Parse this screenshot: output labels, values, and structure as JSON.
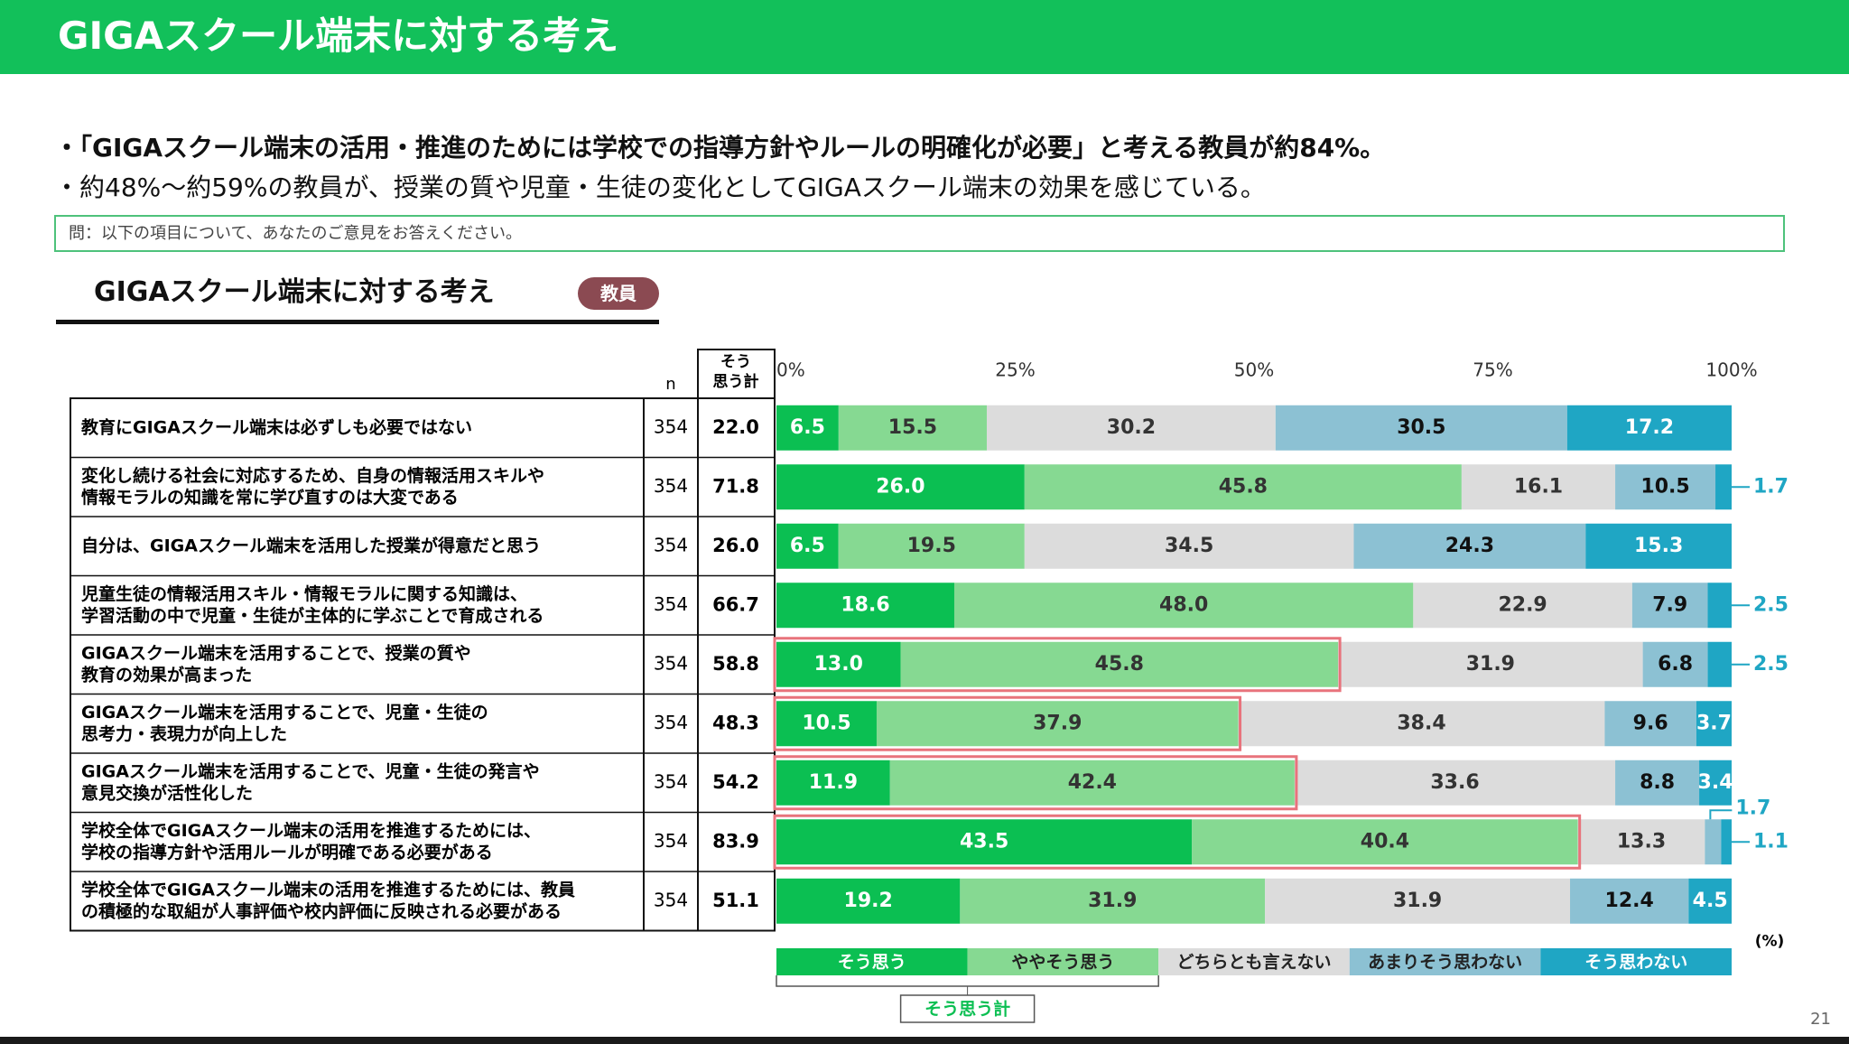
{
  "header": {
    "title": "GIGAスクール端末に対する考え"
  },
  "bullets": [
    "・「GIGAスクール端末の活用・推進のためには学校での指導方針やルールの明確化が必要」と考える教員が約84%。",
    "・約48%～約59%の教員が、授業の質や児童・生徒の変化としてGIGAスクール端末の効果を感じている。"
  ],
  "question": "問：以下の項目について、あなたのご意見をお答えください。",
  "section": {
    "title": "GIGAスクール端末に対する考え",
    "badge": "教員"
  },
  "page_number": "21",
  "chart_data": {
    "type": "bar",
    "orientation": "horizontal-stacked-100",
    "header_n": "n",
    "header_sum": "そう\n思う計",
    "xticks": [
      "0%",
      "25%",
      "50%",
      "75%",
      "100%"
    ],
    "unit_label": "(%)",
    "sum_label": "そう思う計",
    "colors": [
      "#0bbf52",
      "#86d992",
      "#dcdcdc",
      "#8cc1d3",
      "#1fa6c4"
    ],
    "series": [
      {
        "name": "そう思う"
      },
      {
        "name": "ややそう思う"
      },
      {
        "name": "どちらとも言えない"
      },
      {
        "name": "あまりそう思わない"
      },
      {
        "name": "そう思わない"
      }
    ],
    "rows": [
      {
        "label": "教育にGIGAスクール端末は必ずしも必要ではない",
        "n": "354",
        "sum": "22.0",
        "values": [
          6.5,
          15.5,
          30.2,
          30.5,
          17.2
        ],
        "highlight": false
      },
      {
        "label": "変化し続ける社会に対応するため、自身の情報活用スキルや\n情報モラルの知識を常に学び直すのは大変である",
        "n": "354",
        "sum": "71.8",
        "values": [
          26.0,
          45.8,
          16.1,
          10.5,
          1.7
        ],
        "highlight": false
      },
      {
        "label": "自分は、GIGAスクール端末を活用した授業が得意だと思う",
        "n": "354",
        "sum": "26.0",
        "values": [
          6.5,
          19.5,
          34.5,
          24.3,
          15.3
        ],
        "highlight": false
      },
      {
        "label": "児童生徒の情報活用スキル・情報モラルに関する知識は、\n学習活動の中で児童・生徒が主体的に学ぶことで育成される",
        "n": "354",
        "sum": "66.7",
        "values": [
          18.6,
          48.0,
          22.9,
          7.9,
          2.5
        ],
        "highlight": false
      },
      {
        "label": "GIGAスクール端末を活用することで、授業の質や\n教育の効果が高まった",
        "n": "354",
        "sum": "58.8",
        "values": [
          13.0,
          45.8,
          31.9,
          6.8,
          2.5
        ],
        "highlight": true
      },
      {
        "label": "GIGAスクール端末を活用することで、児童・生徒の\n思考力・表現力が向上した",
        "n": "354",
        "sum": "48.3",
        "values": [
          10.5,
          37.9,
          38.4,
          9.6,
          3.7
        ],
        "highlight": true
      },
      {
        "label": "GIGAスクール端末を活用することで、児童・生徒の発言や\n意見交換が活性化した",
        "n": "354",
        "sum": "54.2",
        "values": [
          11.9,
          42.4,
          33.6,
          8.8,
          3.4
        ],
        "highlight": true
      },
      {
        "label": "学校全体でGIGAスクール端末の活用を推進するためには、\n学校の指導方針や活用ルールが明確である必要がある",
        "n": "354",
        "sum": "83.9",
        "values": [
          43.5,
          40.4,
          13.3,
          1.7,
          1.1
        ],
        "highlight": true
      },
      {
        "label": "学校全体でGIGAスクール端末の活用を推進するためには、教員\nの積極的な取組が人事評価や校内評価に反映される必要がある",
        "n": "354",
        "sum": "51.1",
        "values": [
          19.2,
          31.9,
          31.9,
          12.4,
          4.5
        ],
        "highlight": false
      }
    ]
  }
}
